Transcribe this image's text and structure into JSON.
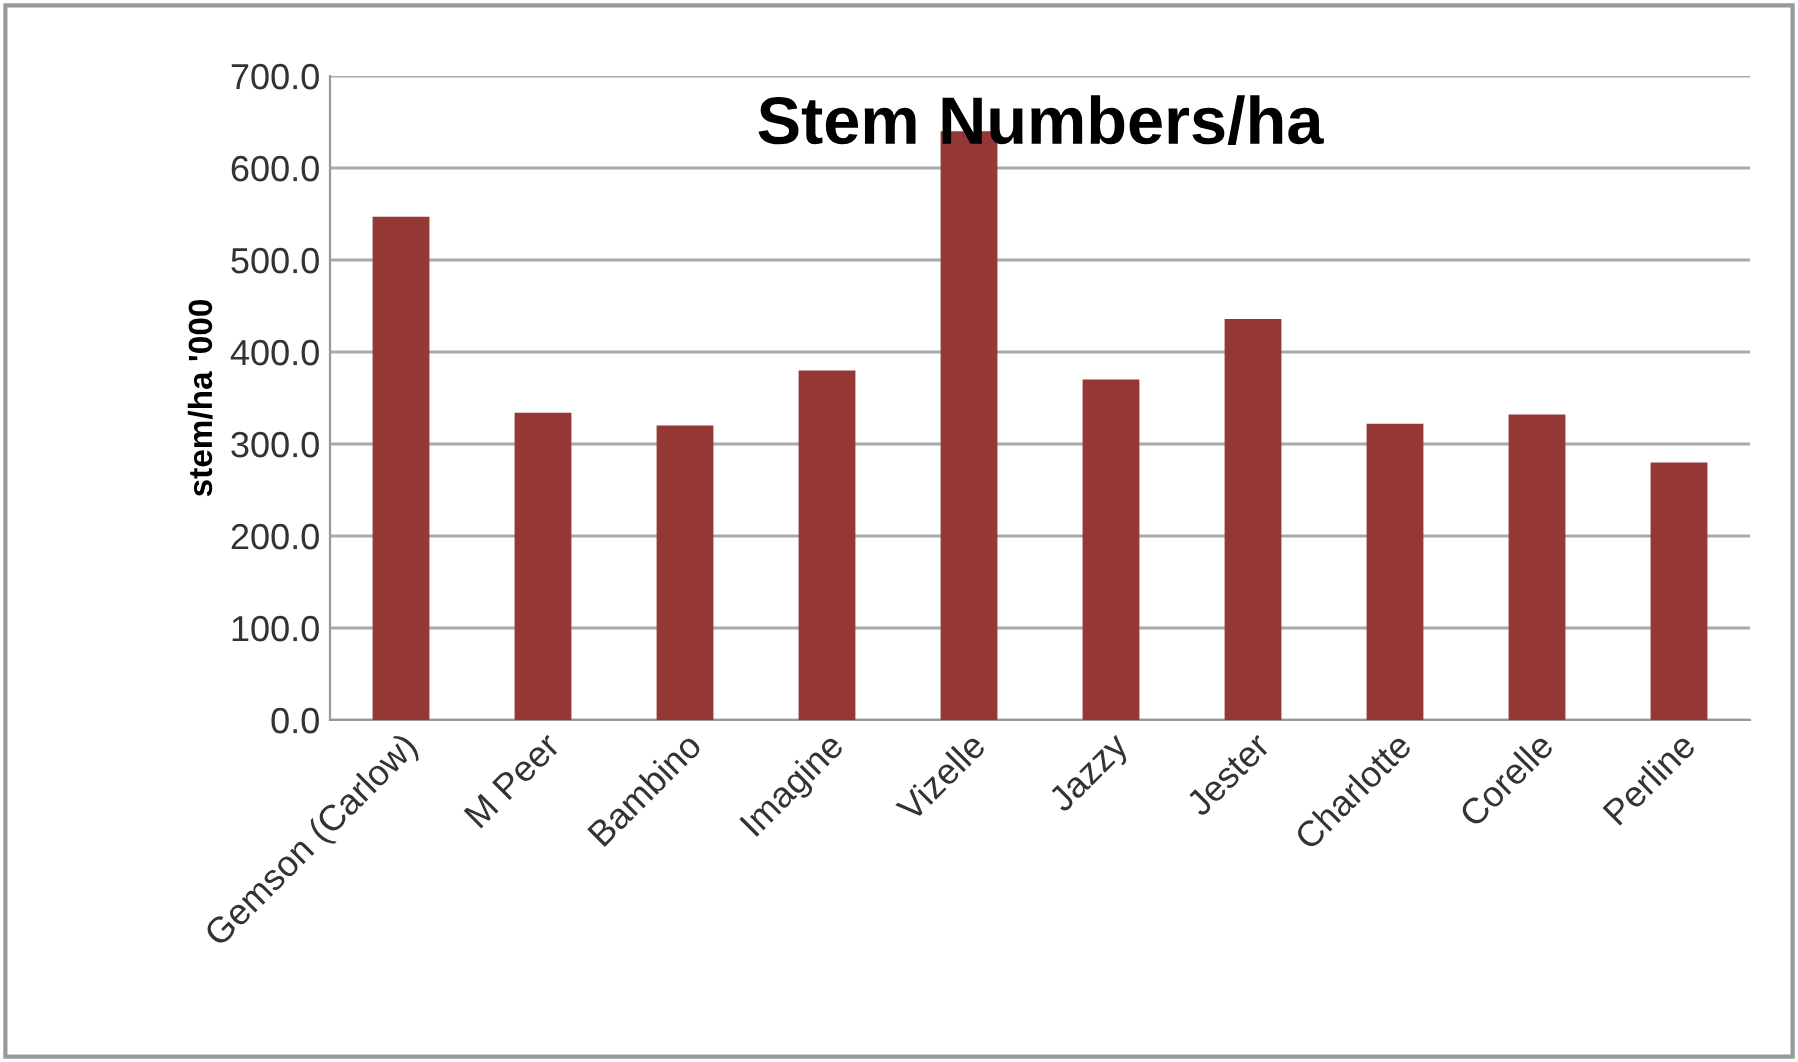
{
  "chart_data": {
    "type": "bar",
    "title": "Stem Numbers/ha",
    "ylabel": "stem/ha '000",
    "categories": [
      "Gemson (Carlow)",
      "M Peer",
      "Bambino",
      "Imagine",
      "Vizelle",
      "Jazzy",
      "Jester",
      "Charlotte",
      "Corelle",
      "Perline"
    ],
    "values": [
      547,
      334,
      320,
      380,
      640,
      370,
      436,
      322,
      332,
      280
    ],
    "color": "#953735",
    "ylim": [
      0,
      700
    ],
    "yticks": [
      {
        "value": 0,
        "label": "0.0"
      },
      {
        "value": 100,
        "label": "100.0"
      },
      {
        "value": 200,
        "label": "200.0"
      },
      {
        "value": 300,
        "label": "300.0"
      },
      {
        "value": 400,
        "label": "400.0"
      },
      {
        "value": 500,
        "label": "500.0"
      },
      {
        "value": 600,
        "label": "600.0"
      },
      {
        "value": 700,
        "label": "700.0"
      }
    ],
    "grid": "y"
  }
}
